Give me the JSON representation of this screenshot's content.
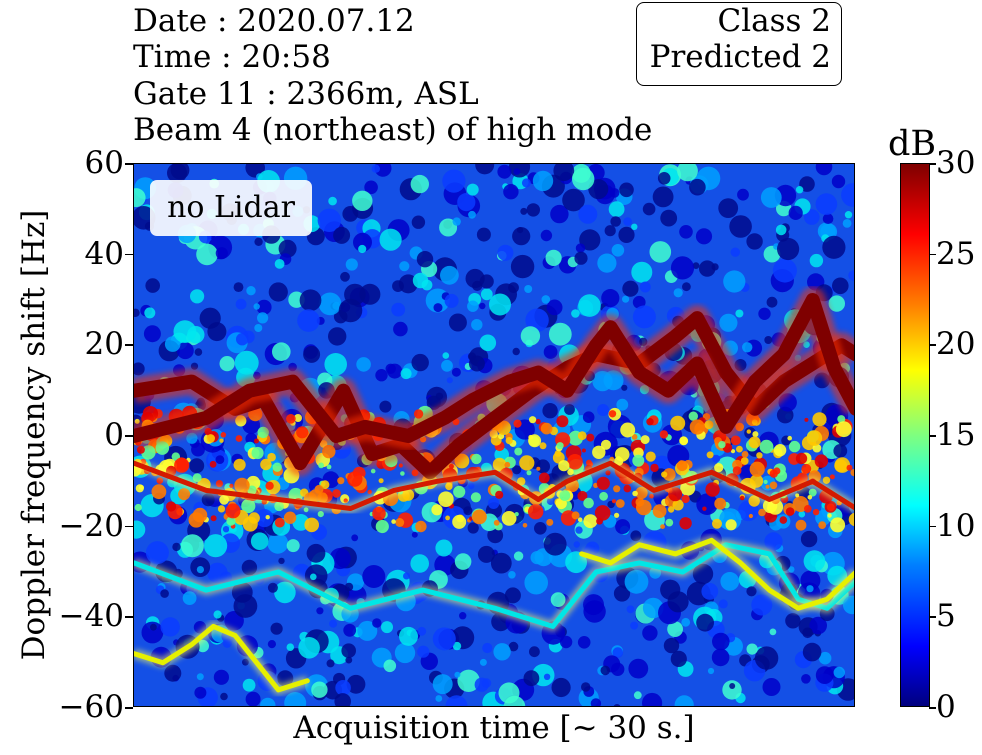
{
  "header": {
    "date": "Date : 2020.07.12",
    "time": "Time : 20:58",
    "gate": "Gate 11 : 2366m, ASL",
    "beam": "Beam 4 (northeast) of high mode"
  },
  "class_box": {
    "class_label": "Class 2",
    "predicted_label": "Predicted 2"
  },
  "annotation": "no Lidar",
  "chart_data": {
    "type": "heatmap",
    "xlabel": "Acquisition time [~ 30 s.]",
    "ylabel": "Doppler frequency shift [Hz]",
    "ylim": [
      -60,
      60
    ],
    "yticks": [
      "60",
      "40",
      "20",
      "0",
      "−20",
      "−40",
      "−60"
    ],
    "ytick_values": [
      60,
      40,
      20,
      0,
      -20,
      -40,
      -60
    ],
    "xticks": [],
    "colorbar": {
      "label": "dB",
      "range": [
        0,
        30
      ],
      "ticks": [
        "30",
        "25",
        "20",
        "15",
        "10",
        "5",
        "0"
      ],
      "tick_values": [
        30,
        25,
        20,
        15,
        10,
        5,
        0
      ],
      "colormap": "jet"
    },
    "grid": false,
    "background_noise_db": [
      2,
      12
    ],
    "signal_band_hz": [
      -20,
      5
    ],
    "traces": [
      {
        "name": "main",
        "color": "#7f0000",
        "points": [
          [
            0,
            10
          ],
          [
            0.08,
            12
          ],
          [
            0.14,
            6
          ],
          [
            0.18,
            8
          ],
          [
            0.23,
            -6
          ],
          [
            0.29,
            10
          ],
          [
            0.33,
            -4
          ],
          [
            0.37,
            -2
          ],
          [
            0.41,
            -8
          ],
          [
            0.45,
            -2
          ],
          [
            0.5,
            4
          ],
          [
            0.55,
            10
          ],
          [
            0.6,
            15
          ],
          [
            0.64,
            18
          ],
          [
            0.7,
            16
          ],
          [
            0.75,
            22
          ],
          [
            0.78,
            26
          ],
          [
            0.82,
            14
          ],
          [
            0.86,
            6
          ],
          [
            0.9,
            12
          ],
          [
            0.94,
            16
          ],
          [
            0.98,
            20
          ],
          [
            1,
            18
          ]
        ]
      },
      {
        "name": "upper",
        "color": "#7f0000",
        "points": [
          [
            0,
            0
          ],
          [
            0.05,
            2
          ],
          [
            0.1,
            4
          ],
          [
            0.16,
            10
          ],
          [
            0.22,
            12
          ],
          [
            0.28,
            0
          ],
          [
            0.32,
            2
          ],
          [
            0.38,
            0
          ],
          [
            0.43,
            4
          ],
          [
            0.47,
            8
          ],
          [
            0.52,
            12
          ],
          [
            0.56,
            14
          ],
          [
            0.6,
            10
          ],
          [
            0.64,
            20
          ],
          [
            0.66,
            24
          ],
          [
            0.7,
            14
          ],
          [
            0.74,
            10
          ],
          [
            0.78,
            16
          ],
          [
            0.82,
            2
          ],
          [
            0.86,
            12
          ],
          [
            0.9,
            18
          ],
          [
            0.94,
            30
          ],
          [
            0.97,
            15
          ],
          [
            1,
            6
          ]
        ]
      },
      {
        "name": "lower-red",
        "color": "#d41a00",
        "points": [
          [
            0,
            -6
          ],
          [
            0.1,
            -12
          ],
          [
            0.2,
            -14
          ],
          [
            0.3,
            -16
          ],
          [
            0.36,
            -12
          ],
          [
            0.42,
            -10
          ],
          [
            0.5,
            -8
          ],
          [
            0.56,
            -14
          ],
          [
            0.6,
            -10
          ],
          [
            0.66,
            -6
          ],
          [
            0.72,
            -12
          ],
          [
            0.8,
            -8
          ],
          [
            0.88,
            -14
          ],
          [
            0.94,
            -10
          ],
          [
            1,
            -16
          ]
        ]
      },
      {
        "name": "cyan-lower",
        "color": "#00e6e6",
        "points": [
          [
            0,
            -28
          ],
          [
            0.1,
            -34
          ],
          [
            0.2,
            -30
          ],
          [
            0.3,
            -38
          ],
          [
            0.4,
            -34
          ],
          [
            0.5,
            -38
          ],
          [
            0.58,
            -42
          ],
          [
            0.64,
            -30
          ],
          [
            0.7,
            -28
          ],
          [
            0.76,
            -30
          ],
          [
            0.82,
            -24
          ],
          [
            0.88,
            -26
          ],
          [
            0.92,
            -36
          ],
          [
            0.96,
            -38
          ],
          [
            1,
            -32
          ]
        ]
      },
      {
        "name": "yellow-lower",
        "color": "#e6f000",
        "points": [
          [
            0,
            -48
          ],
          [
            0.04,
            -50
          ],
          [
            0.08,
            -46
          ],
          [
            0.11,
            -42
          ],
          [
            0.14,
            -44
          ],
          [
            0.17,
            -50
          ],
          [
            0.2,
            -56
          ],
          [
            0.24,
            -54
          ]
        ]
      },
      {
        "name": "yellow-right",
        "color": "#e6f000",
        "points": [
          [
            0.62,
            -26
          ],
          [
            0.66,
            -28
          ],
          [
            0.7,
            -24
          ],
          [
            0.75,
            -26
          ],
          [
            0.8,
            -23
          ],
          [
            0.84,
            -28
          ],
          [
            0.88,
            -34
          ],
          [
            0.92,
            -38
          ],
          [
            0.96,
            -36
          ],
          [
            1,
            -30
          ]
        ]
      }
    ]
  }
}
